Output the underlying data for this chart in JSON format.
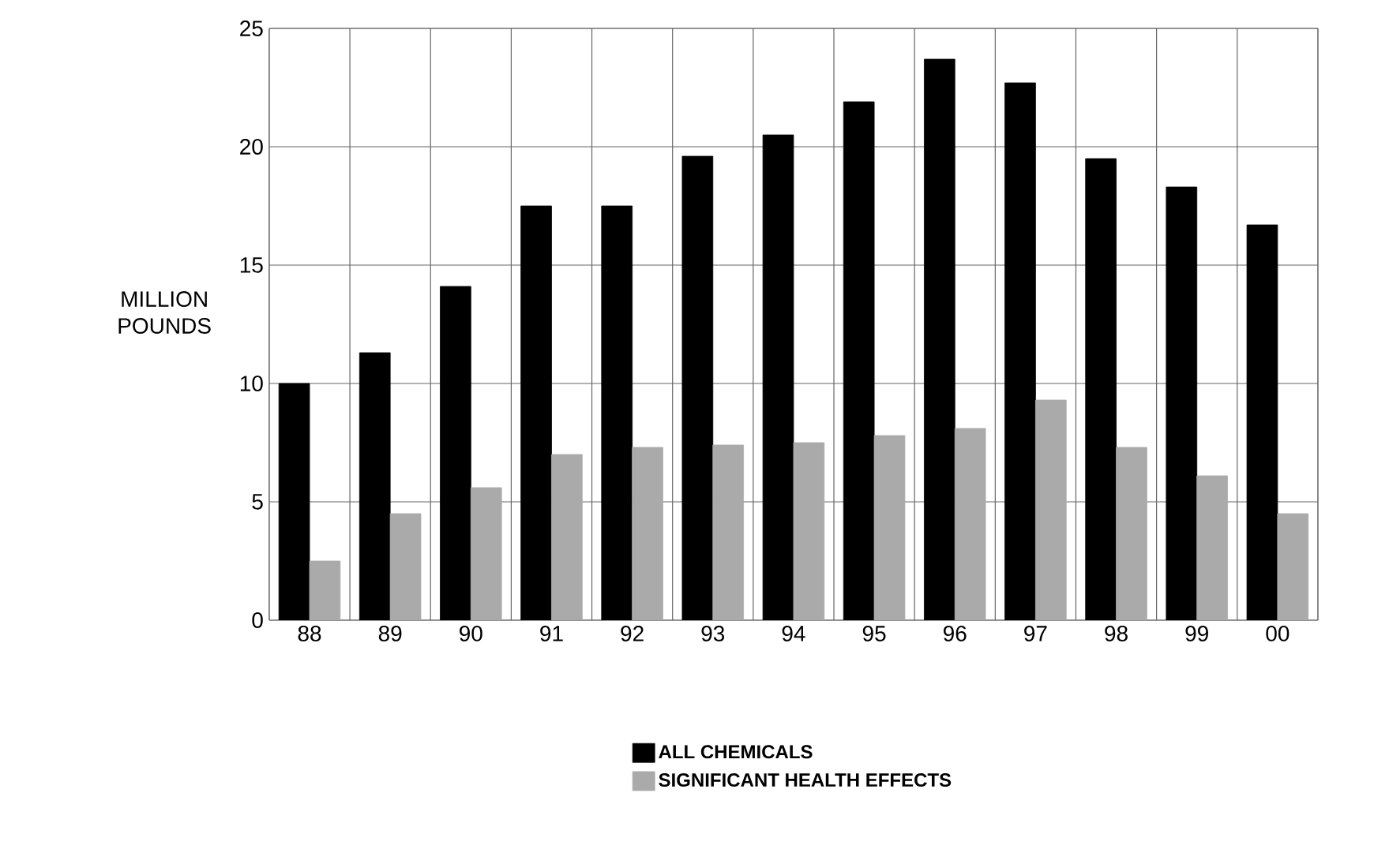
{
  "chart_data": {
    "type": "bar",
    "ylabel": "MILLION POUNDS",
    "categories": [
      "88",
      "89",
      "90",
      "91",
      "92",
      "93",
      "94",
      "95",
      "96",
      "97",
      "98",
      "99",
      "00"
    ],
    "series": [
      {
        "name": "ALL CHEMICALS",
        "color": "#000000",
        "values": [
          10,
          11.3,
          14.1,
          17.5,
          17.5,
          19.6,
          20.5,
          21.9,
          23.7,
          22.7,
          19.5,
          18.3,
          16.7
        ]
      },
      {
        "name": "SIGNIFICANT HEALTH EFFECTS",
        "color": "#aaaaaa",
        "values": [
          2.5,
          4.5,
          5.6,
          7.0,
          7.3,
          7.4,
          7.5,
          7.8,
          8.1,
          9.3,
          7.3,
          6.1,
          4.5
        ]
      }
    ],
    "ylim": [
      0,
      25
    ],
    "yticks": [
      0,
      5,
      10,
      15,
      20,
      25
    ],
    "grid": true,
    "legend": "bottom"
  }
}
